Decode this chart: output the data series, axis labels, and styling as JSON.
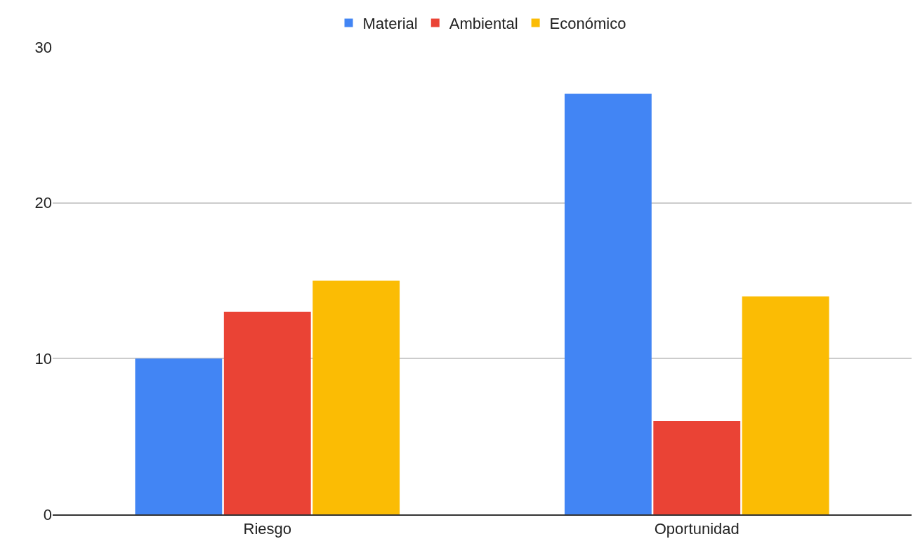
{
  "chart_data": {
    "type": "bar",
    "categories": [
      "Riesgo",
      "Oportunidad"
    ],
    "series": [
      {
        "name": "Material",
        "color": "#4285f4",
        "values": [
          10,
          27
        ]
      },
      {
        "name": "Ambiental",
        "color": "#ea4335",
        "values": [
          13,
          6
        ]
      },
      {
        "name": "Económico",
        "color": "#fbbc04",
        "values": [
          15,
          14
        ]
      }
    ],
    "ylim": [
      0,
      30
    ],
    "yticks": [
      0,
      10,
      20,
      30
    ],
    "grid": "y",
    "legend": "top"
  }
}
